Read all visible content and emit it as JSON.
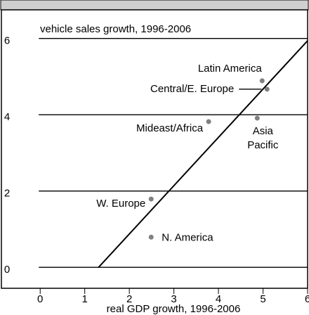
{
  "chart_data": {
    "type": "scatter",
    "y_label": "vehicle sales growth, 1996-2006",
    "x_label": "real GDP growth, 1996-2006",
    "labels": [
      "Latin America",
      "Central/E. Europe",
      "Mideast/Africa",
      "Asia Pacific",
      "W. Europe",
      "N. America"
    ],
    "x": [
      4.98,
      5.09,
      3.78,
      4.87,
      2.49,
      2.49
    ],
    "y": [
      4.89,
      4.67,
      3.82,
      3.91,
      1.79,
      0.79
    ],
    "color": "#808080",
    "fit_line": {
      "x": [
        1.31,
        6
      ],
      "y": [
        0,
        5.94
      ],
      "color": "#000000"
    },
    "xlim": [
      -0.87,
      6
    ],
    "ylim": [
      -0.55,
      6.75
    ],
    "xticks": [
      0,
      1,
      2,
      3,
      4,
      5,
      6
    ],
    "yticks": [
      0,
      2,
      4,
      6
    ],
    "grid": true
  }
}
